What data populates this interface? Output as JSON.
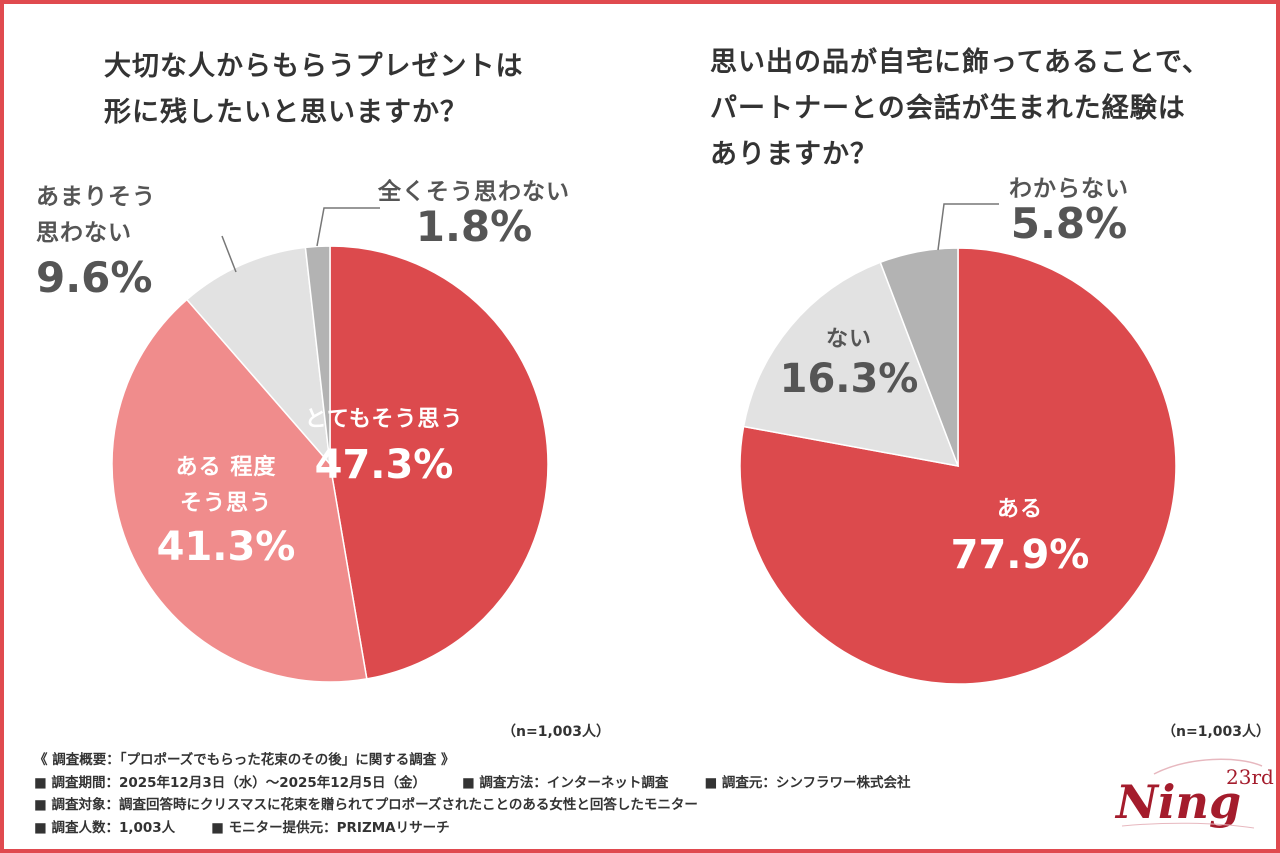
{
  "colors": {
    "frame": "#e04a4f",
    "red": "#dc4a4d",
    "pink": "#f08c8c",
    "light_gray": "#e2e2e2",
    "mid_gray": "#b3b3b3",
    "text_dark": "#333333",
    "label_gray": "#555555"
  },
  "chart_data": [
    {
      "type": "pie",
      "title": "大切な人からもらうプレゼントは\n形に残したいと思いますか？",
      "title_lines": [
        "大切な人からもらうプレゼントは",
        "形に残したいと思いますか？"
      ],
      "note": "（n=1,003人）",
      "slices": [
        {
          "label_lines": [
            "とてもそう思う"
          ],
          "value": 47.3,
          "value_label": "47.3%",
          "color": "#dc4a4d"
        },
        {
          "label_lines": [
            "ある 程度",
            "そう思う"
          ],
          "value": 41.3,
          "value_label": "41.3%",
          "color": "#f08c8c"
        },
        {
          "label_lines": [
            "あまりそう",
            "思わない"
          ],
          "value": 9.6,
          "value_label": "9.6%",
          "color": "#e2e2e2"
        },
        {
          "label_lines": [
            "全くそう思わない"
          ],
          "value": 1.8,
          "value_label": "1.8%",
          "color": "#b3b3b3"
        }
      ]
    },
    {
      "type": "pie",
      "title": "思い出の品が自宅に飾ってあることで、\nパートナーとの会話が生まれた経験は\nありますか？",
      "title_lines": [
        "思い出の品が自宅に飾ってあることで、",
        "パートナーとの会話が生まれた経験は",
        "ありますか？"
      ],
      "note": "（n=1,003人）",
      "slices": [
        {
          "label_lines": [
            "ある"
          ],
          "value": 77.9,
          "value_label": "77.9%",
          "color": "#dc4a4d"
        },
        {
          "label_lines": [
            "ない"
          ],
          "value": 16.3,
          "value_label": "16.3%",
          "color": "#e2e2e2"
        },
        {
          "label_lines": [
            "わからない"
          ],
          "value": 5.8,
          "value_label": "5.8%",
          "color": "#b3b3b3"
        }
      ]
    }
  ],
  "survey": {
    "header": "《 調査概要：「プロポーズでもらった花束のその後」に関する調査 》",
    "period": "■ 調査期間：2025年12月3日（水）～2025年12月5日（金）",
    "method": "■ 調査方法：インターネット調査",
    "source": "■ 調査元：シンフラワー株式会社",
    "target": "■ 調査対象：調査回答時にクリスマスに花束を贈られてプロポーズされたことのある女性と回答したモニター",
    "count": "■ 調査人数：1,003人",
    "provider": "■ モニター提供元：PRIZMAリサーチ"
  },
  "logo": {
    "name": "Ning",
    "superscript": "23rd",
    "wordmark_icon": "ning-logo-icon"
  }
}
